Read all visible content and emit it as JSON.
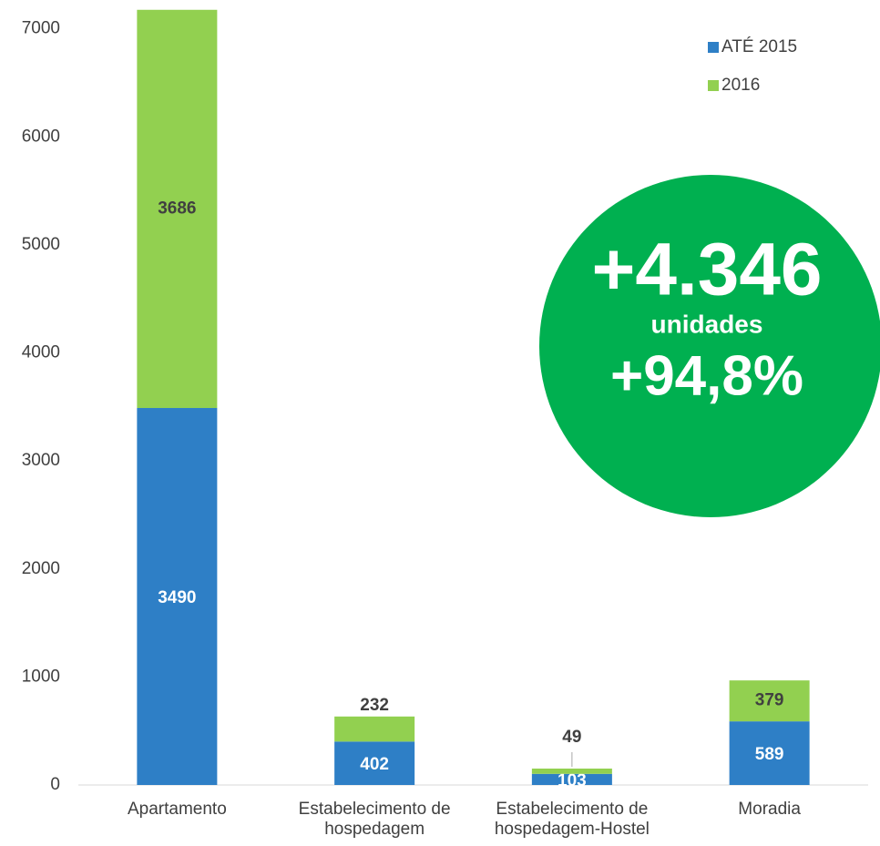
{
  "chart_data": {
    "type": "bar",
    "stacked": true,
    "categories": [
      "Apartamento",
      "Estabelecimento de hospedagem",
      "Estabelecimento de hospedagem-Hostel",
      "Moradia"
    ],
    "series": [
      {
        "name": "ATÉ 2015",
        "color": "#2e7fc6",
        "values": [
          3490,
          402,
          103,
          589
        ]
      },
      {
        "name": "2016",
        "color": "#92d050",
        "values": [
          3686,
          232,
          49,
          379
        ]
      }
    ],
    "ylim": [
      0,
      7250
    ],
    "yticks": [
      0,
      1000,
      2000,
      3000,
      4000,
      5000,
      6000,
      7000
    ],
    "legend": "top-right",
    "annotations": [
      "+4.346",
      "unidades",
      "+94,8%"
    ],
    "annotation_color": "#00b050"
  }
}
